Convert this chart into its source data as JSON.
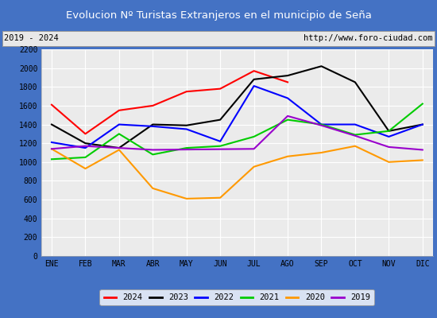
{
  "title": "Evolucion Nº Turistas Extranjeros en el municipio de Seña",
  "subtitle_left": "2019 - 2024",
  "subtitle_right": "http://www.foro-ciudad.com",
  "months": [
    "ENE",
    "FEB",
    "MAR",
    "ABR",
    "MAY",
    "JUN",
    "JUL",
    "AGO",
    "SEP",
    "OCT",
    "NOV",
    "DIC"
  ],
  "series": {
    "2024": {
      "color": "#ff0000",
      "data": [
        1610,
        1300,
        1550,
        1600,
        1750,
        1780,
        1970,
        1850,
        null,
        null,
        null,
        null
      ]
    },
    "2023": {
      "color": "#000000",
      "data": [
        1400,
        1200,
        1150,
        1400,
        1390,
        1450,
        1880,
        1920,
        2020,
        1850,
        1330,
        1400
      ]
    },
    "2022": {
      "color": "#0000ff",
      "data": [
        1210,
        1150,
        1400,
        1380,
        1350,
        1220,
        1810,
        1680,
        1400,
        1400,
        1270,
        1400
      ]
    },
    "2021": {
      "color": "#00cc00",
      "data": [
        1030,
        1050,
        1300,
        1080,
        1150,
        1170,
        1270,
        1450,
        1400,
        1290,
        1330,
        1620
      ]
    },
    "2020": {
      "color": "#ff9900",
      "data": [
        1140,
        930,
        1130,
        720,
        610,
        620,
        950,
        1060,
        1100,
        1170,
        1000,
        1020
      ]
    },
    "2019": {
      "color": "#9900cc",
      "data": [
        1140,
        1170,
        1150,
        1130,
        null,
        null,
        1140,
        1490,
        1390,
        1280,
        1160,
        1130
      ]
    }
  },
  "ylim": [
    0,
    2200
  ],
  "yticks": [
    0,
    200,
    400,
    600,
    800,
    1000,
    1200,
    1400,
    1600,
    1800,
    2000,
    2200
  ],
  "title_bg_color": "#4472c4",
  "title_text_color": "#ffffff",
  "plot_bg_color": "#ebebeb",
  "grid_color": "#ffffff",
  "border_color": "#4472c4",
  "subtitle_bg": "#e8e8e8"
}
